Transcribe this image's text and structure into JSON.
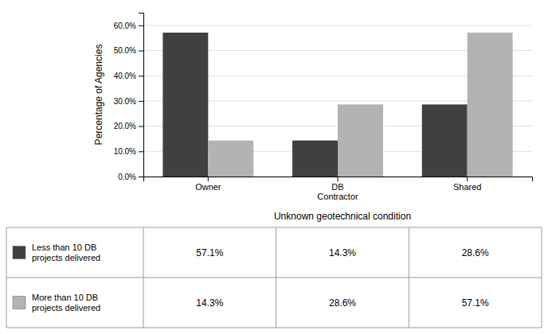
{
  "chart_data": {
    "type": "bar",
    "categories": [
      "Owner",
      "DB\nContractor",
      "Shared"
    ],
    "series": [
      {
        "name": "Less than 10 DB\nprojects delivered",
        "color": "#404040",
        "values": [
          57.1,
          14.3,
          28.6
        ],
        "value_labels": [
          "57.1%",
          "14.3%",
          "28.6%"
        ]
      },
      {
        "name": "More than 10 DB\nprojects delivered",
        "color": "#b3b3b3",
        "values": [
          14.3,
          28.6,
          57.1
        ],
        "value_labels": [
          "14.3%",
          "28.6%",
          "57.1%"
        ]
      }
    ],
    "ylabel": "Percentage of Agencies",
    "xlabel": "Unknown geotechnical condition",
    "ylim": [
      0,
      65
    ],
    "yticks": [
      {
        "value": 0,
        "label": "0.0%"
      },
      {
        "value": 10,
        "label": "10.0%"
      },
      {
        "value": 20,
        "label": "20.0%"
      },
      {
        "value": 30,
        "label": "30.0%"
      },
      {
        "value": 40,
        "label": "40.0%"
      },
      {
        "value": 50,
        "label": "50.0%"
      },
      {
        "value": 60,
        "label": "60.0%"
      }
    ],
    "grid": true
  }
}
